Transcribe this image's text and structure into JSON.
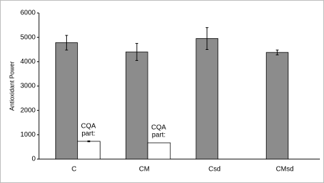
{
  "chart_data": {
    "type": "bar",
    "y_label": "Antioxidant Power",
    "categories": [
      "C",
      "CM",
      "Csd",
      "CMsd"
    ],
    "series": [
      {
        "color": "#8c8c8c",
        "values": [
          4780,
          4400,
          4950,
          4380
        ],
        "errors": [
          300,
          350,
          450,
          100
        ]
      },
      {
        "color": "#ffffff",
        "values": [
          730,
          670,
          null,
          null
        ],
        "errors": [
          20,
          null,
          null,
          null
        ]
      }
    ],
    "annotations": [
      [
        "CQA",
        "part:"
      ],
      [
        "CQA",
        "part:"
      ]
    ],
    "ylim": [
      0,
      6000
    ],
    "yticks": [
      0,
      1000,
      2000,
      3000,
      4000,
      5000,
      6000
    ],
    "grid": false
  }
}
